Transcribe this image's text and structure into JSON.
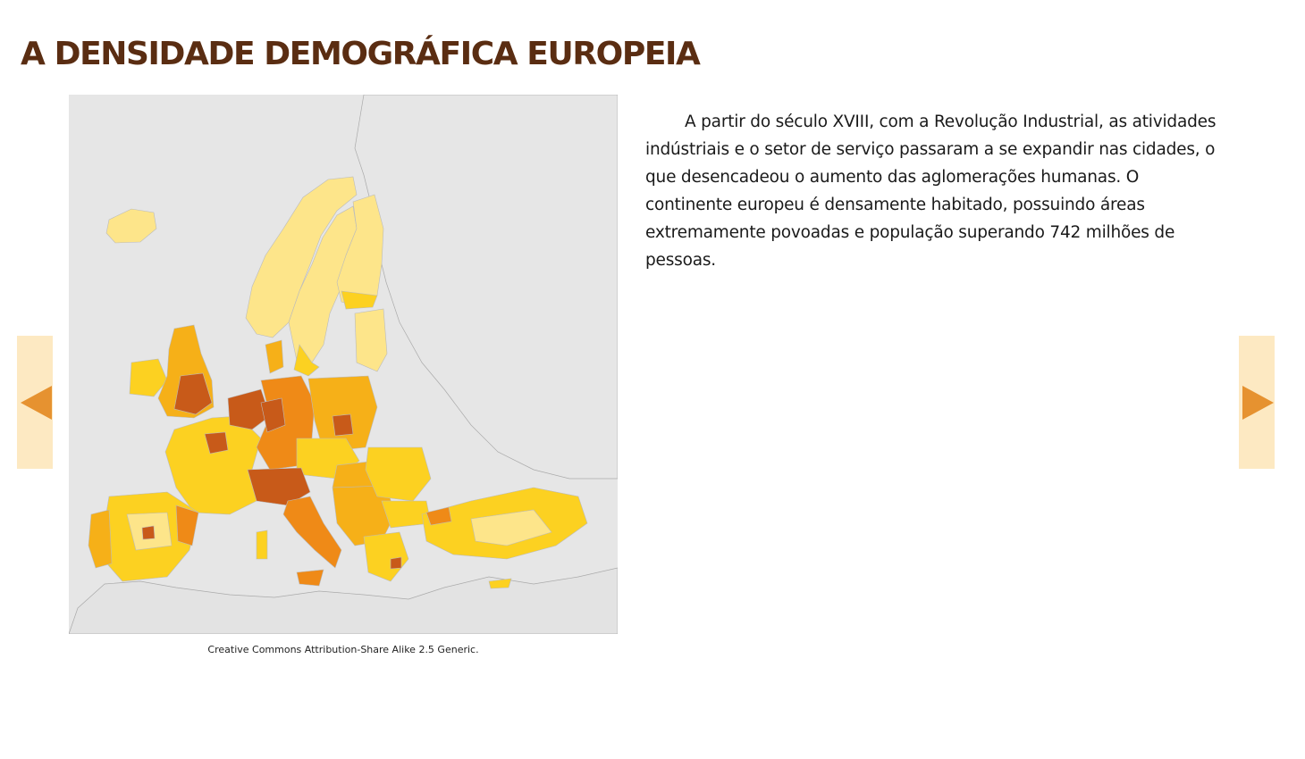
{
  "page": {
    "title": "A DENSIDADE DEMOGRÁFICA EUROPEIA",
    "paragraph": "A partir do século XVIII, com a Revolução Industrial, as atividades indústriais e o setor de serviço passaram a se expandir nas cidades, o que desencadeou o aumento das aglomerações humanas. O continente europeu é densamente habitado, possuindo áreas extremamente povoadas e população superando 742 milhões de pessoas."
  },
  "map": {
    "caption": "Creative Commons Attribution-Share Alike 2.5 Generic.",
    "colors": {
      "background": "#e6e6e6",
      "very_low": "#fde58a",
      "low": "#fcd121",
      "medium": "#f6b018",
      "high": "#ef8a17",
      "very_high": "#c85a19"
    }
  },
  "navigation": {
    "prev_icon": "arrow-left-icon",
    "next_icon": "arrow-right-icon",
    "accent_color": "#e69230",
    "button_color": "#fde9c2"
  }
}
